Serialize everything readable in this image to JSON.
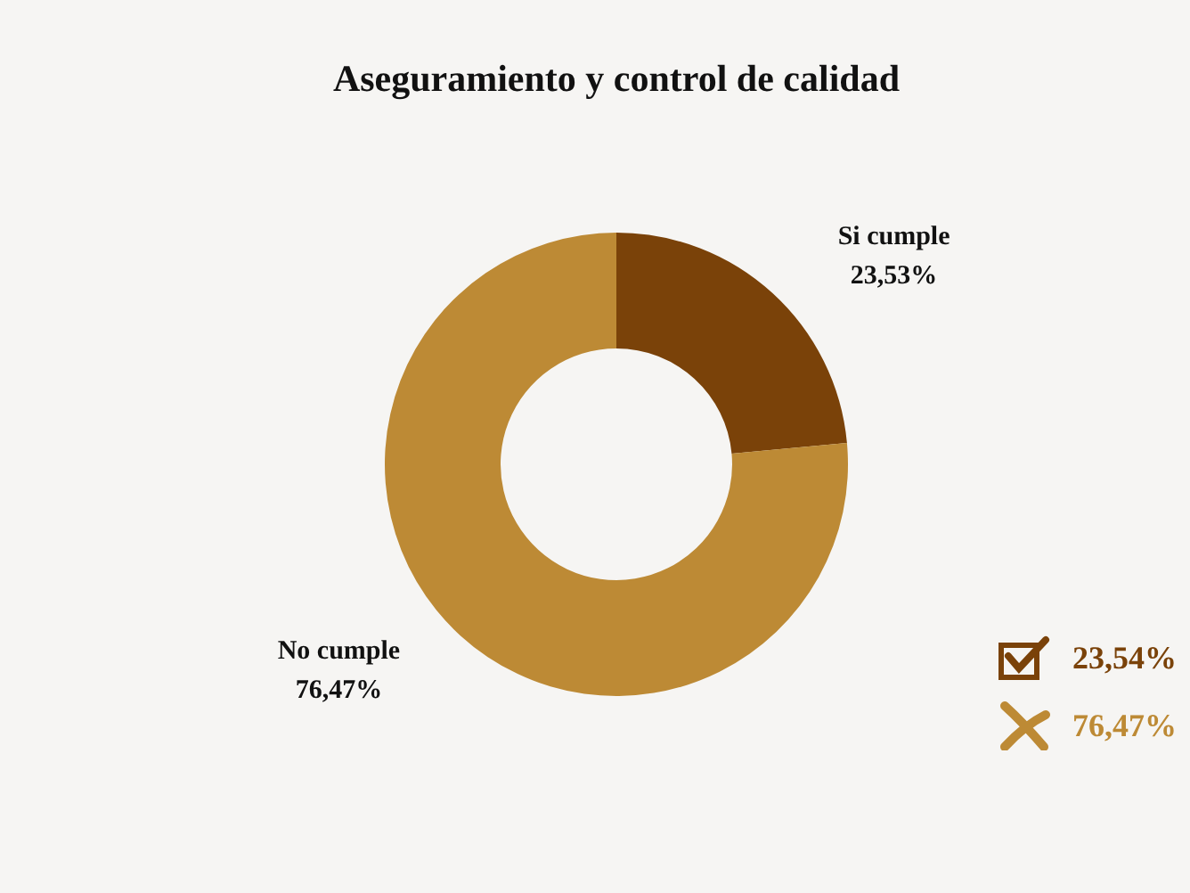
{
  "chart_data": {
    "type": "donut",
    "title": "Aseguramiento y control de calidad",
    "categories": [
      "Si cumple",
      "No cumple"
    ],
    "values": [
      23.53,
      76.47
    ],
    "colors": [
      "#7a4209",
      "#bd8a35"
    ],
    "value_labels": [
      "23,53%",
      "76,47%"
    ],
    "annotations": [
      "23,54%",
      "76,47%"
    ]
  }
}
